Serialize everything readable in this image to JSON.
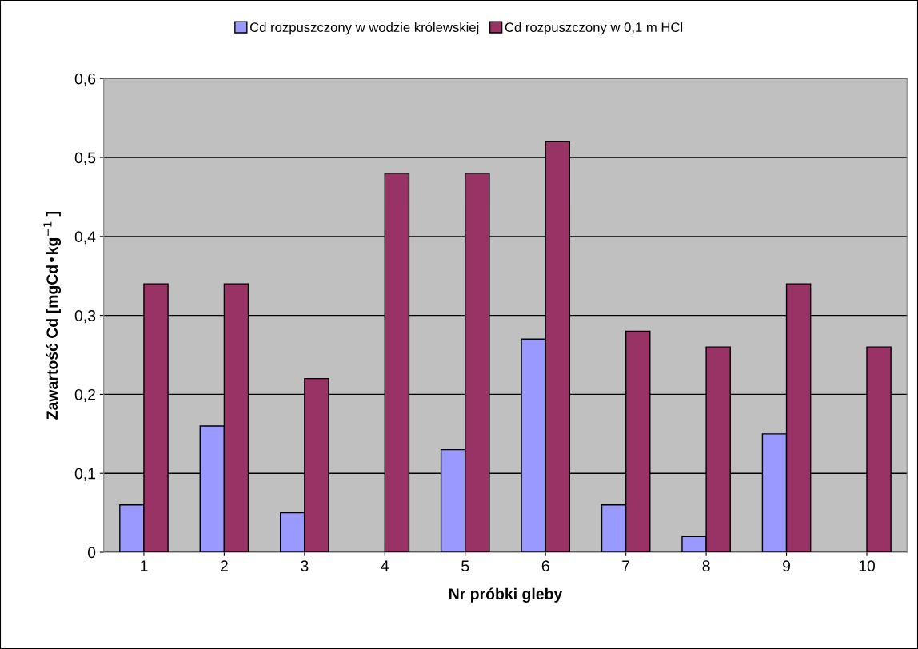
{
  "chart_data": {
    "type": "bar",
    "categories": [
      "1",
      "2",
      "3",
      "4",
      "5",
      "6",
      "7",
      "8",
      "9",
      "10"
    ],
    "series": [
      {
        "name": "Cd rozpuszczony w wodzie królewskiej",
        "color": "#9999ff",
        "values": [
          0.06,
          0.16,
          0.05,
          null,
          0.13,
          0.27,
          0.06,
          0.02,
          0.15,
          null
        ]
      },
      {
        "name": "Cd rozpuszczony w 0,1 m HCl",
        "color": "#993366",
        "values": [
          0.34,
          0.34,
          0.22,
          0.48,
          0.48,
          0.52,
          0.28,
          0.26,
          0.34,
          0.26
        ]
      }
    ],
    "xlabel": "Nr próbki gleby",
    "ylabel": "Zawartość Cd [mgCd•kg$^{−1}$ ]",
    "ylim": [
      0,
      0.6
    ],
    "yticks": [
      0,
      {
        "value": 0.1,
        "label": "0,1"
      },
      {
        "value": 0.2,
        "label": "0,2"
      },
      {
        "value": 0.3,
        "label": "0,3"
      },
      {
        "value": 0.4,
        "label": "0,4"
      },
      {
        "value": 0.5,
        "label": "0,5"
      },
      {
        "value": 0.6,
        "label": "0,6"
      }
    ],
    "grid": "y",
    "legend": "top"
  }
}
